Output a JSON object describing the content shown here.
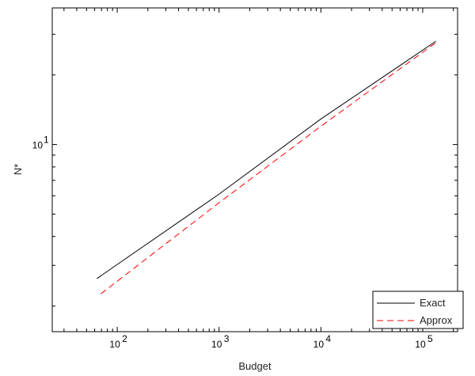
{
  "chart_data": {
    "type": "line",
    "xlabel": "Budget",
    "ylabel": "N*",
    "xscale": "log",
    "yscale": "log",
    "xlim": [
      23,
      220000
    ],
    "ylim": [
      1.55,
      39
    ],
    "x_ticks": [
      {
        "base": "10",
        "exp": "2",
        "value": 100
      },
      {
        "base": "10",
        "exp": "3",
        "value": 1000
      },
      {
        "base": "10",
        "exp": "4",
        "value": 10000
      },
      {
        "base": "10",
        "exp": "5",
        "value": 100000
      }
    ],
    "y_ticks": [
      {
        "base": "10",
        "exp": "1",
        "value": 10
      }
    ],
    "grid": false,
    "legend_placement": "bottom-right",
    "series": [
      {
        "name": "Exact",
        "color": "#000000",
        "style": "solid",
        "x": [
          63,
          1000,
          10000,
          135000
        ],
        "y": [
          2.63,
          6.1,
          12.9,
          28.0
        ]
      },
      {
        "name": "Approx",
        "color": "#ff0000",
        "style": "dashed",
        "x": [
          69,
          1000,
          10000,
          135000
        ],
        "y": [
          2.26,
          5.6,
          12.0,
          27.6
        ]
      }
    ]
  }
}
